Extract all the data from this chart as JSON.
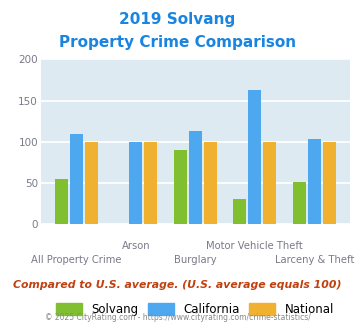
{
  "title_line1": "2019 Solvang",
  "title_line2": "Property Crime Comparison",
  "title_color": "#1a85e0",
  "categories": [
    "All Property Crime",
    "Arson",
    "Burglary",
    "Motor Vehicle Theft",
    "Larceny & Theft"
  ],
  "solvang": [
    55,
    0,
    90,
    31,
    51
  ],
  "california": [
    110,
    100,
    113,
    163,
    103
  ],
  "national": [
    100,
    100,
    100,
    100,
    100
  ],
  "solvang_color": "#80c030",
  "california_color": "#4da8f0",
  "national_color": "#f0b030",
  "ylim": [
    0,
    200
  ],
  "yticks": [
    0,
    50,
    100,
    150,
    200
  ],
  "background_color": "#ddeaf2",
  "footer_text": "Compared to U.S. average. (U.S. average equals 100)",
  "footer_color": "#c04010",
  "copyright_text": "© 2025 CityRating.com - https://www.cityrating.com/crime-statistics/",
  "copyright_color": "#888888",
  "grid_color": "#ffffff",
  "axis_label_color": "#7a7a8a",
  "legend_labels": [
    "Solvang",
    "California",
    "National"
  ],
  "bar_width": 0.22,
  "bar_gap": 0.03
}
